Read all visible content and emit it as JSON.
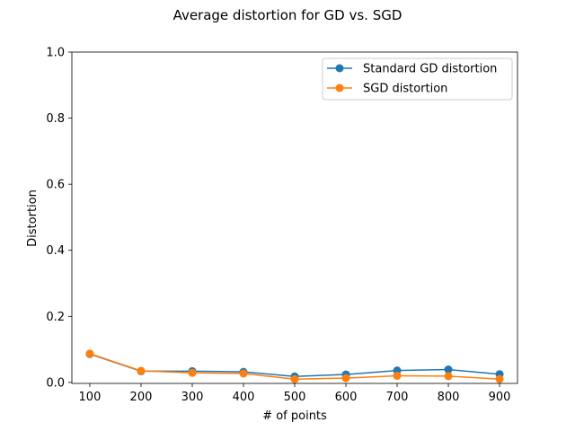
{
  "chart_data": {
    "type": "line",
    "title": "Average distortion for GD vs. SGD",
    "xlabel": "# of points",
    "ylabel": "Distortion",
    "x": [
      100,
      200,
      300,
      400,
      500,
      600,
      700,
      800,
      900
    ],
    "xticks": [
      "100",
      "200",
      "300",
      "400",
      "500",
      "600",
      "700",
      "800",
      "900"
    ],
    "yticks": [
      "0.0",
      "0.2",
      "0.4",
      "0.6",
      "0.8",
      "1.0"
    ],
    "xlim": [
      65,
      935
    ],
    "ylim": [
      -0.003,
      1.0
    ],
    "grid": false,
    "legend_position": "top-right",
    "series": [
      {
        "name": "Standard GD distortion",
        "color": "#1f77b4",
        "marker": "circle",
        "values": [
          0.086,
          0.034,
          0.034,
          0.032,
          0.018,
          0.024,
          0.036,
          0.039,
          0.025
        ]
      },
      {
        "name": "SGD distortion",
        "color": "#ff7f0e",
        "marker": "circle",
        "values": [
          0.087,
          0.035,
          0.029,
          0.027,
          0.01,
          0.013,
          0.02,
          0.019,
          0.01
        ]
      }
    ]
  }
}
